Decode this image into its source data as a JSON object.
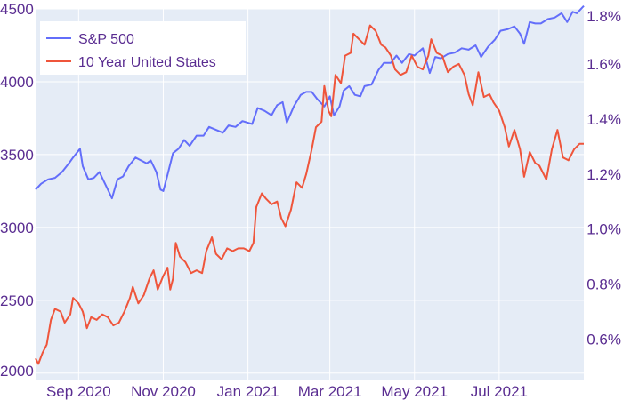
{
  "colors": {
    "plot_bg": "#e5ecf6",
    "grid": "#ffffff",
    "tick_text": "#5a2d91",
    "legend_bg": "#ffffff"
  },
  "chart_data": {
    "type": "line",
    "title": "",
    "xlabel": "",
    "ylabel": "",
    "y2label": "",
    "xlim": [
      "2020-08-01",
      "2021-08-31"
    ],
    "ylim": [
      1950,
      4500
    ],
    "y2lim": [
      0.45,
      1.8
    ],
    "grid": true,
    "legend_position": "top-left",
    "x_ticks": [
      {
        "date": "2020-09-01",
        "label": "Sep 2020"
      },
      {
        "date": "2020-11-01",
        "label": "Nov 2020"
      },
      {
        "date": "2021-01-01",
        "label": "Jan 2021"
      },
      {
        "date": "2021-03-01",
        "label": "Mar 2021"
      },
      {
        "date": "2021-05-01",
        "label": "May 2021"
      },
      {
        "date": "2021-07-01",
        "label": "Jul 2021"
      }
    ],
    "y_ticks": [
      {
        "value": 2000,
        "label": "2000"
      },
      {
        "value": 2500,
        "label": "2500"
      },
      {
        "value": 3000,
        "label": "3000"
      },
      {
        "value": 3500,
        "label": "3500"
      },
      {
        "value": 4000,
        "label": "4000"
      },
      {
        "value": 4500,
        "label": "4500"
      }
    ],
    "y2_ticks": [
      {
        "value": 0.6,
        "label": "0.6%"
      },
      {
        "value": 0.8,
        "label": "0.8%"
      },
      {
        "value": 1.0,
        "label": "1.0%"
      },
      {
        "value": 1.2,
        "label": "1.2%"
      },
      {
        "value": 1.4,
        "label": "1.4%"
      },
      {
        "value": 1.6,
        "label": "1.6%"
      },
      {
        "value": 1.8,
        "label": "1.8%"
      }
    ],
    "series": [
      {
        "name": "S&P 500",
        "axis": "left",
        "color": "#636efa",
        "points": [
          [
            "2020-08-01",
            3260
          ],
          [
            "2020-08-05",
            3300
          ],
          [
            "2020-08-10",
            3330
          ],
          [
            "2020-08-15",
            3340
          ],
          [
            "2020-08-20",
            3380
          ],
          [
            "2020-08-25",
            3440
          ],
          [
            "2020-08-28",
            3480
          ],
          [
            "2020-09-02",
            3540
          ],
          [
            "2020-09-04",
            3420
          ],
          [
            "2020-09-08",
            3330
          ],
          [
            "2020-09-12",
            3340
          ],
          [
            "2020-09-16",
            3380
          ],
          [
            "2020-09-20",
            3300
          ],
          [
            "2020-09-23",
            3240
          ],
          [
            "2020-09-25",
            3200
          ],
          [
            "2020-09-29",
            3330
          ],
          [
            "2020-10-03",
            3350
          ],
          [
            "2020-10-07",
            3420
          ],
          [
            "2020-10-12",
            3480
          ],
          [
            "2020-10-16",
            3460
          ],
          [
            "2020-10-20",
            3440
          ],
          [
            "2020-10-23",
            3460
          ],
          [
            "2020-10-27",
            3380
          ],
          [
            "2020-10-30",
            3260
          ],
          [
            "2020-11-01",
            3250
          ],
          [
            "2020-11-04",
            3360
          ],
          [
            "2020-11-08",
            3510
          ],
          [
            "2020-11-12",
            3540
          ],
          [
            "2020-11-16",
            3600
          ],
          [
            "2020-11-20",
            3560
          ],
          [
            "2020-11-25",
            3630
          ],
          [
            "2020-11-30",
            3630
          ],
          [
            "2020-12-04",
            3690
          ],
          [
            "2020-12-09",
            3670
          ],
          [
            "2020-12-14",
            3650
          ],
          [
            "2020-12-18",
            3700
          ],
          [
            "2020-12-23",
            3690
          ],
          [
            "2020-12-28",
            3730
          ],
          [
            "2021-01-04",
            3710
          ],
          [
            "2021-01-08",
            3820
          ],
          [
            "2021-01-13",
            3800
          ],
          [
            "2021-01-18",
            3770
          ],
          [
            "2021-01-22",
            3840
          ],
          [
            "2021-01-26",
            3860
          ],
          [
            "2021-01-29",
            3720
          ],
          [
            "2021-02-03",
            3830
          ],
          [
            "2021-02-08",
            3910
          ],
          [
            "2021-02-12",
            3930
          ],
          [
            "2021-02-16",
            3930
          ],
          [
            "2021-02-20",
            3880
          ],
          [
            "2021-02-25",
            3830
          ],
          [
            "2021-03-01",
            3900
          ],
          [
            "2021-03-04",
            3770
          ],
          [
            "2021-03-08",
            3830
          ],
          [
            "2021-03-11",
            3940
          ],
          [
            "2021-03-15",
            3970
          ],
          [
            "2021-03-19",
            3910
          ],
          [
            "2021-03-23",
            3900
          ],
          [
            "2021-03-26",
            3970
          ],
          [
            "2021-03-31",
            3980
          ],
          [
            "2021-04-05",
            4080
          ],
          [
            "2021-04-09",
            4130
          ],
          [
            "2021-04-14",
            4130
          ],
          [
            "2021-04-18",
            4180
          ],
          [
            "2021-04-22",
            4130
          ],
          [
            "2021-04-27",
            4190
          ],
          [
            "2021-05-01",
            4180
          ],
          [
            "2021-05-07",
            4230
          ],
          [
            "2021-05-12",
            4060
          ],
          [
            "2021-05-16",
            4170
          ],
          [
            "2021-05-20",
            4160
          ],
          [
            "2021-05-25",
            4190
          ],
          [
            "2021-05-30",
            4200
          ],
          [
            "2021-06-04",
            4230
          ],
          [
            "2021-06-09",
            4220
          ],
          [
            "2021-06-14",
            4250
          ],
          [
            "2021-06-18",
            4170
          ],
          [
            "2021-06-23",
            4240
          ],
          [
            "2021-06-28",
            4290
          ],
          [
            "2021-07-02",
            4350
          ],
          [
            "2021-07-07",
            4360
          ],
          [
            "2021-07-12",
            4380
          ],
          [
            "2021-07-16",
            4330
          ],
          [
            "2021-07-19",
            4260
          ],
          [
            "2021-07-23",
            4410
          ],
          [
            "2021-07-27",
            4400
          ],
          [
            "2021-07-31",
            4400
          ],
          [
            "2021-08-05",
            4430
          ],
          [
            "2021-08-10",
            4440
          ],
          [
            "2021-08-15",
            4470
          ],
          [
            "2021-08-19",
            4410
          ],
          [
            "2021-08-23",
            4480
          ],
          [
            "2021-08-26",
            4470
          ],
          [
            "2021-08-31",
            4520
          ]
        ]
      },
      {
        "name": "10 Year United States",
        "axis": "right",
        "color": "#ef553b",
        "points": [
          [
            "2020-08-01",
            0.53
          ],
          [
            "2020-08-03",
            0.51
          ],
          [
            "2020-08-06",
            0.55
          ],
          [
            "2020-08-09",
            0.58
          ],
          [
            "2020-08-12",
            0.67
          ],
          [
            "2020-08-15",
            0.71
          ],
          [
            "2020-08-19",
            0.7
          ],
          [
            "2020-08-22",
            0.66
          ],
          [
            "2020-08-26",
            0.69
          ],
          [
            "2020-08-28",
            0.75
          ],
          [
            "2020-09-01",
            0.73
          ],
          [
            "2020-09-04",
            0.7
          ],
          [
            "2020-09-07",
            0.64
          ],
          [
            "2020-09-10",
            0.68
          ],
          [
            "2020-09-14",
            0.67
          ],
          [
            "2020-09-18",
            0.69
          ],
          [
            "2020-09-22",
            0.68
          ],
          [
            "2020-09-26",
            0.65
          ],
          [
            "2020-09-30",
            0.66
          ],
          [
            "2020-10-04",
            0.7
          ],
          [
            "2020-10-08",
            0.75
          ],
          [
            "2020-10-10",
            0.79
          ],
          [
            "2020-10-14",
            0.73
          ],
          [
            "2020-10-18",
            0.76
          ],
          [
            "2020-10-22",
            0.82
          ],
          [
            "2020-10-25",
            0.85
          ],
          [
            "2020-10-28",
            0.78
          ],
          [
            "2020-11-01",
            0.83
          ],
          [
            "2020-11-04",
            0.86
          ],
          [
            "2020-11-06",
            0.78
          ],
          [
            "2020-11-08",
            0.82
          ],
          [
            "2020-11-10",
            0.95
          ],
          [
            "2020-11-13",
            0.9
          ],
          [
            "2020-11-17",
            0.88
          ],
          [
            "2020-11-21",
            0.84
          ],
          [
            "2020-11-25",
            0.85
          ],
          [
            "2020-11-29",
            0.84
          ],
          [
            "2020-12-02",
            0.92
          ],
          [
            "2020-12-06",
            0.97
          ],
          [
            "2020-12-09",
            0.91
          ],
          [
            "2020-12-13",
            0.89
          ],
          [
            "2020-12-17",
            0.93
          ],
          [
            "2020-12-21",
            0.92
          ],
          [
            "2020-12-25",
            0.93
          ],
          [
            "2020-12-29",
            0.93
          ],
          [
            "2021-01-02",
            0.92
          ],
          [
            "2021-01-05",
            0.95
          ],
          [
            "2021-01-07",
            1.08
          ],
          [
            "2021-01-11",
            1.13
          ],
          [
            "2021-01-14",
            1.11
          ],
          [
            "2021-01-18",
            1.09
          ],
          [
            "2021-01-22",
            1.1
          ],
          [
            "2021-01-25",
            1.04
          ],
          [
            "2021-01-28",
            1.01
          ],
          [
            "2021-02-01",
            1.07
          ],
          [
            "2021-02-05",
            1.17
          ],
          [
            "2021-02-09",
            1.15
          ],
          [
            "2021-02-12",
            1.2
          ],
          [
            "2021-02-16",
            1.29
          ],
          [
            "2021-02-19",
            1.37
          ],
          [
            "2021-02-23",
            1.39
          ],
          [
            "2021-02-25",
            1.52
          ],
          [
            "2021-02-28",
            1.43
          ],
          [
            "2021-03-02",
            1.41
          ],
          [
            "2021-03-05",
            1.56
          ],
          [
            "2021-03-09",
            1.53
          ],
          [
            "2021-03-12",
            1.63
          ],
          [
            "2021-03-16",
            1.64
          ],
          [
            "2021-03-18",
            1.71
          ],
          [
            "2021-03-22",
            1.69
          ],
          [
            "2021-03-26",
            1.67
          ],
          [
            "2021-03-30",
            1.74
          ],
          [
            "2021-04-03",
            1.72
          ],
          [
            "2021-04-07",
            1.67
          ],
          [
            "2021-04-10",
            1.66
          ],
          [
            "2021-04-14",
            1.63
          ],
          [
            "2021-04-17",
            1.58
          ],
          [
            "2021-04-21",
            1.56
          ],
          [
            "2021-04-25",
            1.57
          ],
          [
            "2021-04-29",
            1.63
          ],
          [
            "2021-05-03",
            1.59
          ],
          [
            "2021-05-07",
            1.58
          ],
          [
            "2021-05-11",
            1.63
          ],
          [
            "2021-05-13",
            1.69
          ],
          [
            "2021-05-17",
            1.64
          ],
          [
            "2021-05-21",
            1.63
          ],
          [
            "2021-05-25",
            1.57
          ],
          [
            "2021-05-29",
            1.59
          ],
          [
            "2021-06-02",
            1.6
          ],
          [
            "2021-06-06",
            1.56
          ],
          [
            "2021-06-09",
            1.49
          ],
          [
            "2021-06-12",
            1.45
          ],
          [
            "2021-06-16",
            1.57
          ],
          [
            "2021-06-20",
            1.48
          ],
          [
            "2021-06-24",
            1.49
          ],
          [
            "2021-06-27",
            1.46
          ],
          [
            "2021-07-01",
            1.43
          ],
          [
            "2021-07-05",
            1.37
          ],
          [
            "2021-07-08",
            1.3
          ],
          [
            "2021-07-12",
            1.36
          ],
          [
            "2021-07-16",
            1.29
          ],
          [
            "2021-07-19",
            1.19
          ],
          [
            "2021-07-23",
            1.28
          ],
          [
            "2021-07-27",
            1.24
          ],
          [
            "2021-07-30",
            1.23
          ],
          [
            "2021-08-04",
            1.18
          ],
          [
            "2021-08-08",
            1.29
          ],
          [
            "2021-08-12",
            1.36
          ],
          [
            "2021-08-16",
            1.26
          ],
          [
            "2021-08-20",
            1.25
          ],
          [
            "2021-08-24",
            1.29
          ],
          [
            "2021-08-28",
            1.31
          ],
          [
            "2021-08-31",
            1.31
          ]
        ]
      }
    ]
  }
}
